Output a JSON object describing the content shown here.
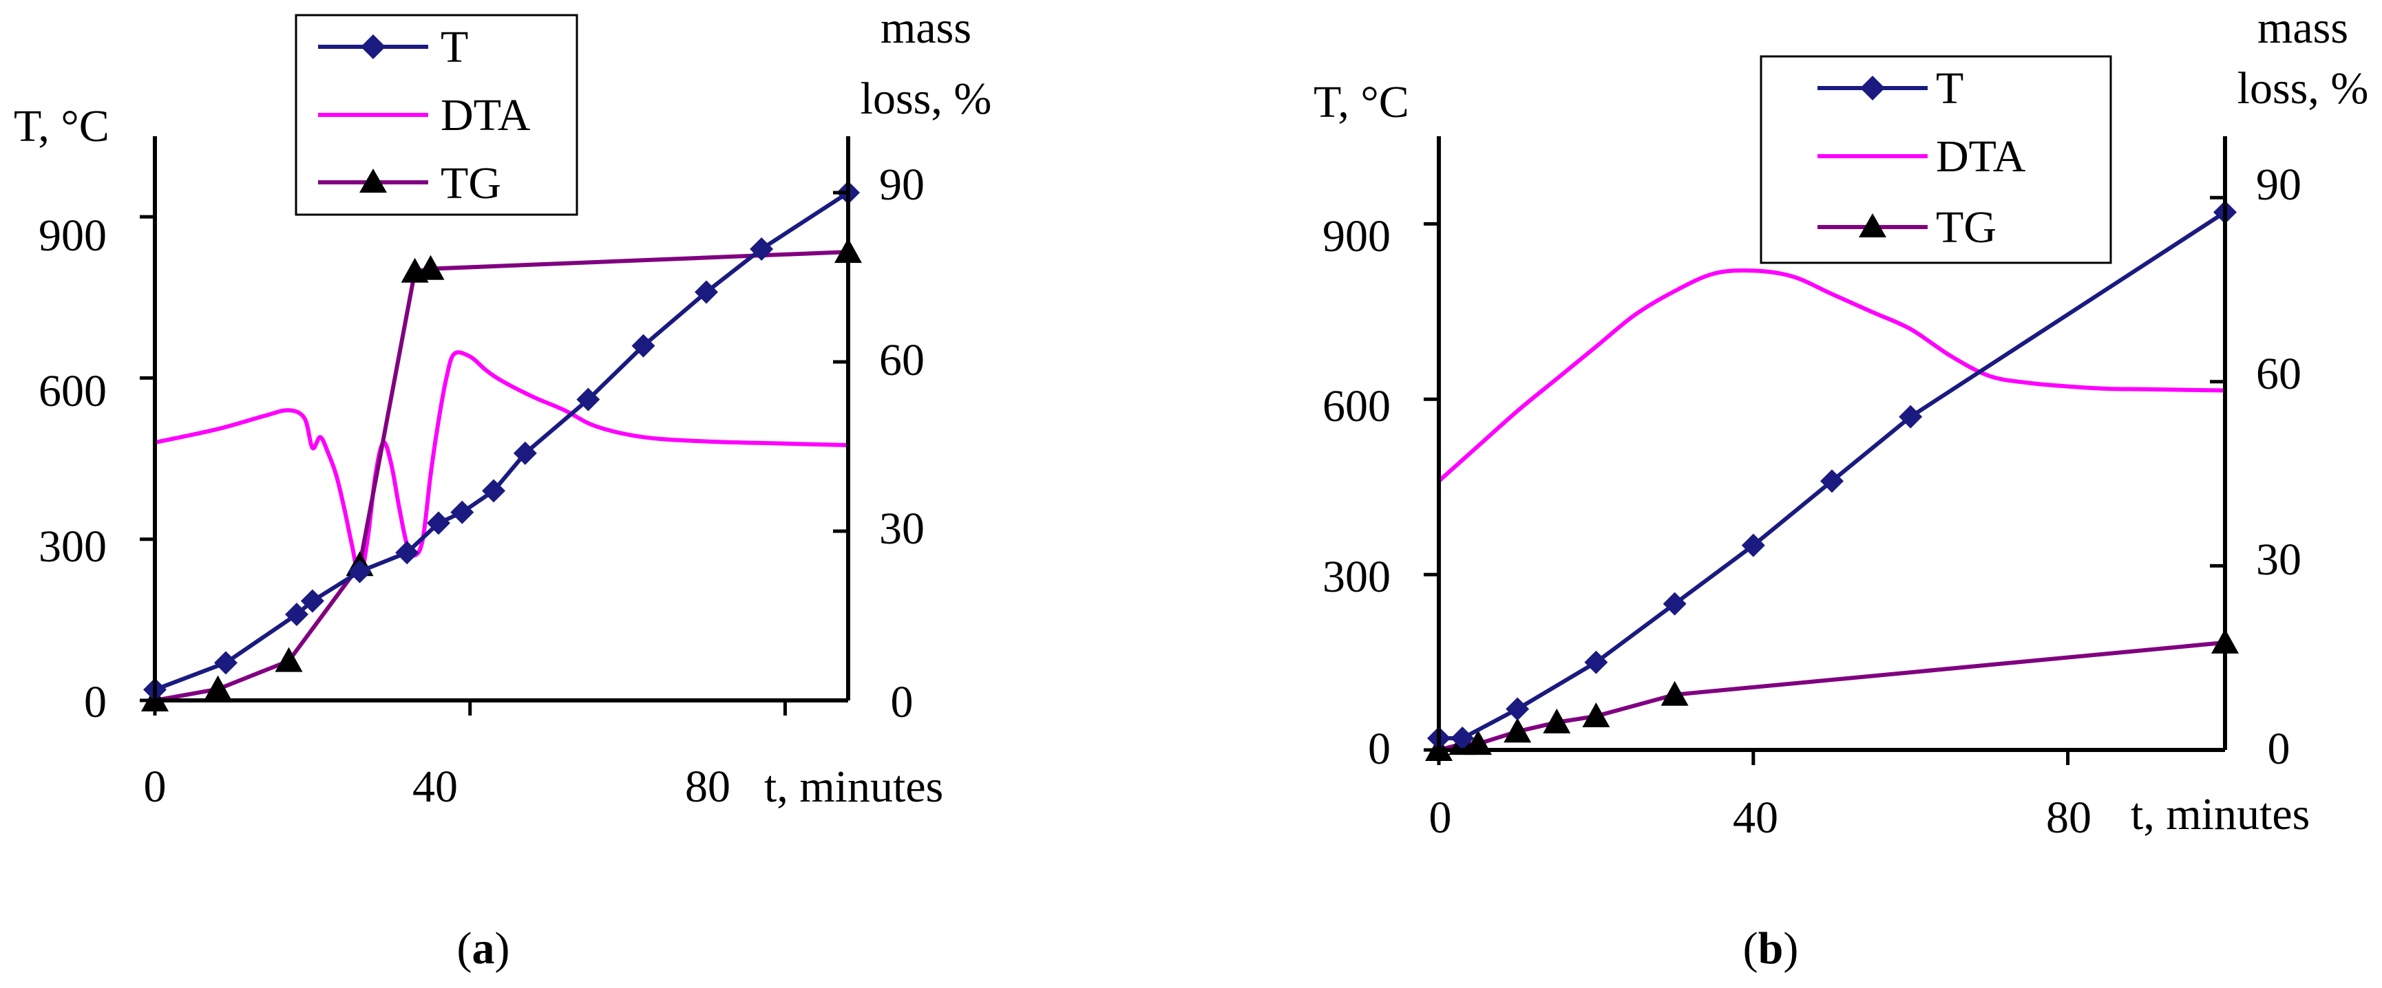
{
  "charts": [
    {
      "caption_letter": "a",
      "ylabel_left": "T, °C",
      "ylabel_right_line1": "mass",
      "ylabel_right_line2": "loss, %",
      "xlabel": "t, minutes",
      "y_ticks_left": [
        "0",
        "300",
        "600",
        "900"
      ],
      "y_ticks_right": [
        "0",
        "30",
        "60",
        "90"
      ],
      "x_ticks": [
        "0",
        "40",
        "80"
      ],
      "legend": [
        "T",
        "DTA",
        "TG"
      ]
    },
    {
      "caption_letter": "b",
      "ylabel_left": "T, °C",
      "ylabel_right_line1": "mass",
      "ylabel_right_line2": "loss, %",
      "xlabel": "t, minutes",
      "y_ticks_left": [
        "0",
        "300",
        "600",
        "900"
      ],
      "y_ticks_right": [
        "0",
        "30",
        "60",
        "90"
      ],
      "x_ticks": [
        "0",
        "40",
        "80"
      ],
      "legend": [
        "T",
        "DTA",
        "TG"
      ]
    }
  ],
  "colors": {
    "T": "#1a1a80",
    "DTA": "#ff00ff",
    "TG": "#800080"
  },
  "chart_data": [
    {
      "type": "line",
      "xlabel": "t, minutes",
      "ylabel": "T, °C",
      "y2label": "mass loss, %",
      "xlim": [
        0,
        88
      ],
      "ylim": [
        0,
        1050
      ],
      "y2lim": [
        0,
        100
      ],
      "x_ticks": [
        0,
        40,
        80
      ],
      "y_ticks": [
        0,
        300,
        600,
        900
      ],
      "y2_ticks": [
        0,
        30,
        60,
        90
      ],
      "legend_position": "top-left",
      "series": [
        {
          "name": "T",
          "axis": "left",
          "marker": "diamond",
          "x": [
            0,
            9,
            18,
            20,
            26,
            32,
            36,
            39,
            43,
            47,
            55,
            62,
            70,
            77,
            88
          ],
          "y": [
            20,
            70,
            160,
            185,
            240,
            275,
            330,
            350,
            390,
            460,
            560,
            660,
            760,
            840,
            945
          ]
        },
        {
          "name": "DTA",
          "axis": "left",
          "marker": "none",
          "x": [
            0,
            8,
            14,
            17,
            19,
            20,
            21,
            22,
            23,
            24,
            25,
            26,
            27,
            28,
            29,
            30,
            31,
            32,
            33,
            34,
            35,
            36,
            37,
            38,
            40,
            42,
            44,
            48,
            52,
            56,
            62,
            70,
            80,
            88
          ],
          "y": [
            480,
            505,
            530,
            540,
            525,
            470,
            490,
            460,
            420,
            360,
            290,
            230,
            300,
            420,
            480,
            440,
            360,
            290,
            270,
            300,
            420,
            520,
            600,
            645,
            640,
            615,
            595,
            565,
            540,
            510,
            490,
            482,
            478,
            475
          ]
        },
        {
          "name": "TG",
          "axis": "right",
          "marker": "triangle",
          "x": [
            0,
            8,
            17,
            26,
            33,
            35,
            88
          ],
          "y": [
            0,
            2,
            7,
            24,
            76,
            76.5,
            79.5
          ]
        }
      ]
    },
    {
      "type": "line",
      "xlabel": "t, minutes",
      "ylabel": "T, °C",
      "y2label": "mass loss, %",
      "xlim": [
        0,
        100
      ],
      "ylim": [
        0,
        1050
      ],
      "y2lim": [
        0,
        100
      ],
      "x_ticks": [
        0,
        40,
        80
      ],
      "y_ticks": [
        0,
        300,
        600,
        900
      ],
      "y2_ticks": [
        0,
        30,
        60,
        90
      ],
      "legend_position": "top-center",
      "series": [
        {
          "name": "T",
          "axis": "left",
          "marker": "diamond",
          "x": [
            0,
            3,
            10,
            20,
            30,
            40,
            50,
            60,
            100
          ],
          "y": [
            20,
            20,
            70,
            150,
            250,
            350,
            460,
            570,
            920
          ]
        },
        {
          "name": "DTA",
          "axis": "left",
          "marker": "none",
          "x": [
            0,
            5,
            10,
            15,
            20,
            25,
            30,
            35,
            40,
            45,
            50,
            55,
            60,
            65,
            70,
            75,
            80,
            85,
            90,
            100
          ],
          "y": [
            460,
            520,
            580,
            635,
            690,
            745,
            785,
            815,
            820,
            810,
            780,
            750,
            720,
            675,
            640,
            628,
            622,
            618,
            617,
            615
          ]
        },
        {
          "name": "TG",
          "axis": "right",
          "marker": "triangle",
          "x": [
            0,
            3,
            5,
            10,
            15,
            20,
            30,
            100
          ],
          "y": [
            0,
            1,
            1,
            3,
            4.5,
            5.5,
            9,
            17.5
          ]
        }
      ]
    }
  ]
}
